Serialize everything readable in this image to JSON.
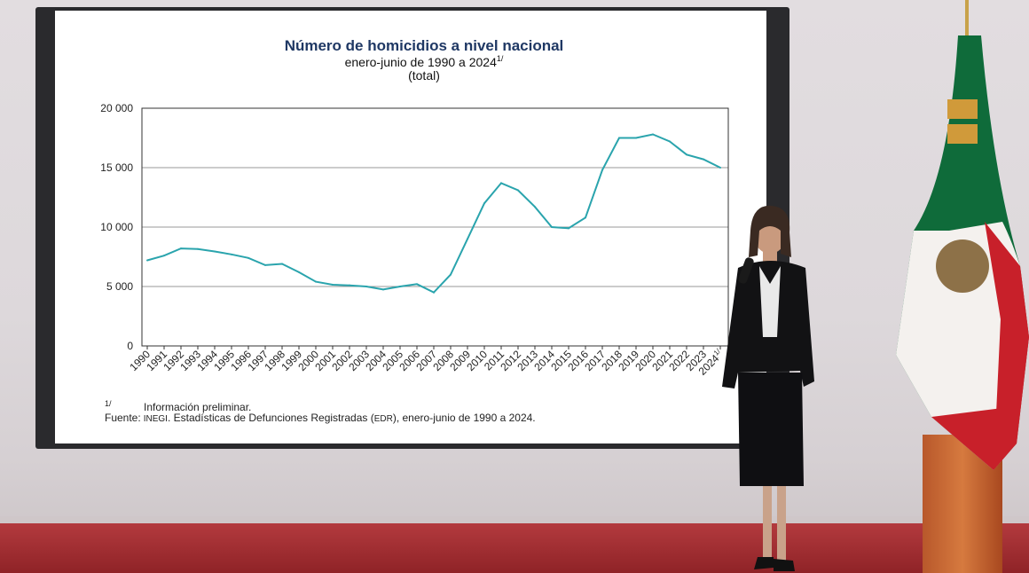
{
  "chart_data": {
    "type": "line",
    "title": "Número de homicidios a nivel nacional",
    "subtitle": "enero-junio de 1990 a 2024",
    "subtitle_sup": "1/",
    "unit_label": "(total)",
    "categories": [
      "1990",
      "1991",
      "1992",
      "1993",
      "1994",
      "1995",
      "1996",
      "1997",
      "1998",
      "1999",
      "2000",
      "2001",
      "2002",
      "2003",
      "2004",
      "2005",
      "2006",
      "2007",
      "2008",
      "2009",
      "2010",
      "2011",
      "2012",
      "2013",
      "2014",
      "2015",
      "2016",
      "2017",
      "2018",
      "2019",
      "2020",
      "2021",
      "2022",
      "2023",
      "2024"
    ],
    "last_category_sup": "1/",
    "values": [
      7200,
      7600,
      8200,
      8150,
      7950,
      7700,
      7400,
      6800,
      6900,
      6200,
      5400,
      5150,
      5100,
      5000,
      4750,
      5000,
      5200,
      4500,
      6000,
      9000,
      12000,
      13700,
      13100,
      11700,
      10000,
      9900,
      10800,
      14800,
      17500,
      17500,
      17800,
      17200,
      16100,
      15700,
      15000
    ],
    "y_ticks": [
      "0",
      "5 000",
      "10 000",
      "15 000",
      "20 000"
    ],
    "ylim": [
      0,
      20000
    ],
    "grid": true,
    "line_color": "#2aa4ad",
    "footnote_marker": "1/",
    "footnote_text": "Información preliminar.",
    "source_label": "Fuente:",
    "source_org": "INEGI",
    "source_text_1": ". Estadísticas de Defunciones Registradas (",
    "source_abbrev": "EDR",
    "source_text_2": "), enero-junio de 1990 a 2024."
  },
  "colors": {
    "title": "#1f3864",
    "stage_red": "#a0282c",
    "flag_green": "#0f6b3a",
    "flag_red": "#c8202a"
  }
}
